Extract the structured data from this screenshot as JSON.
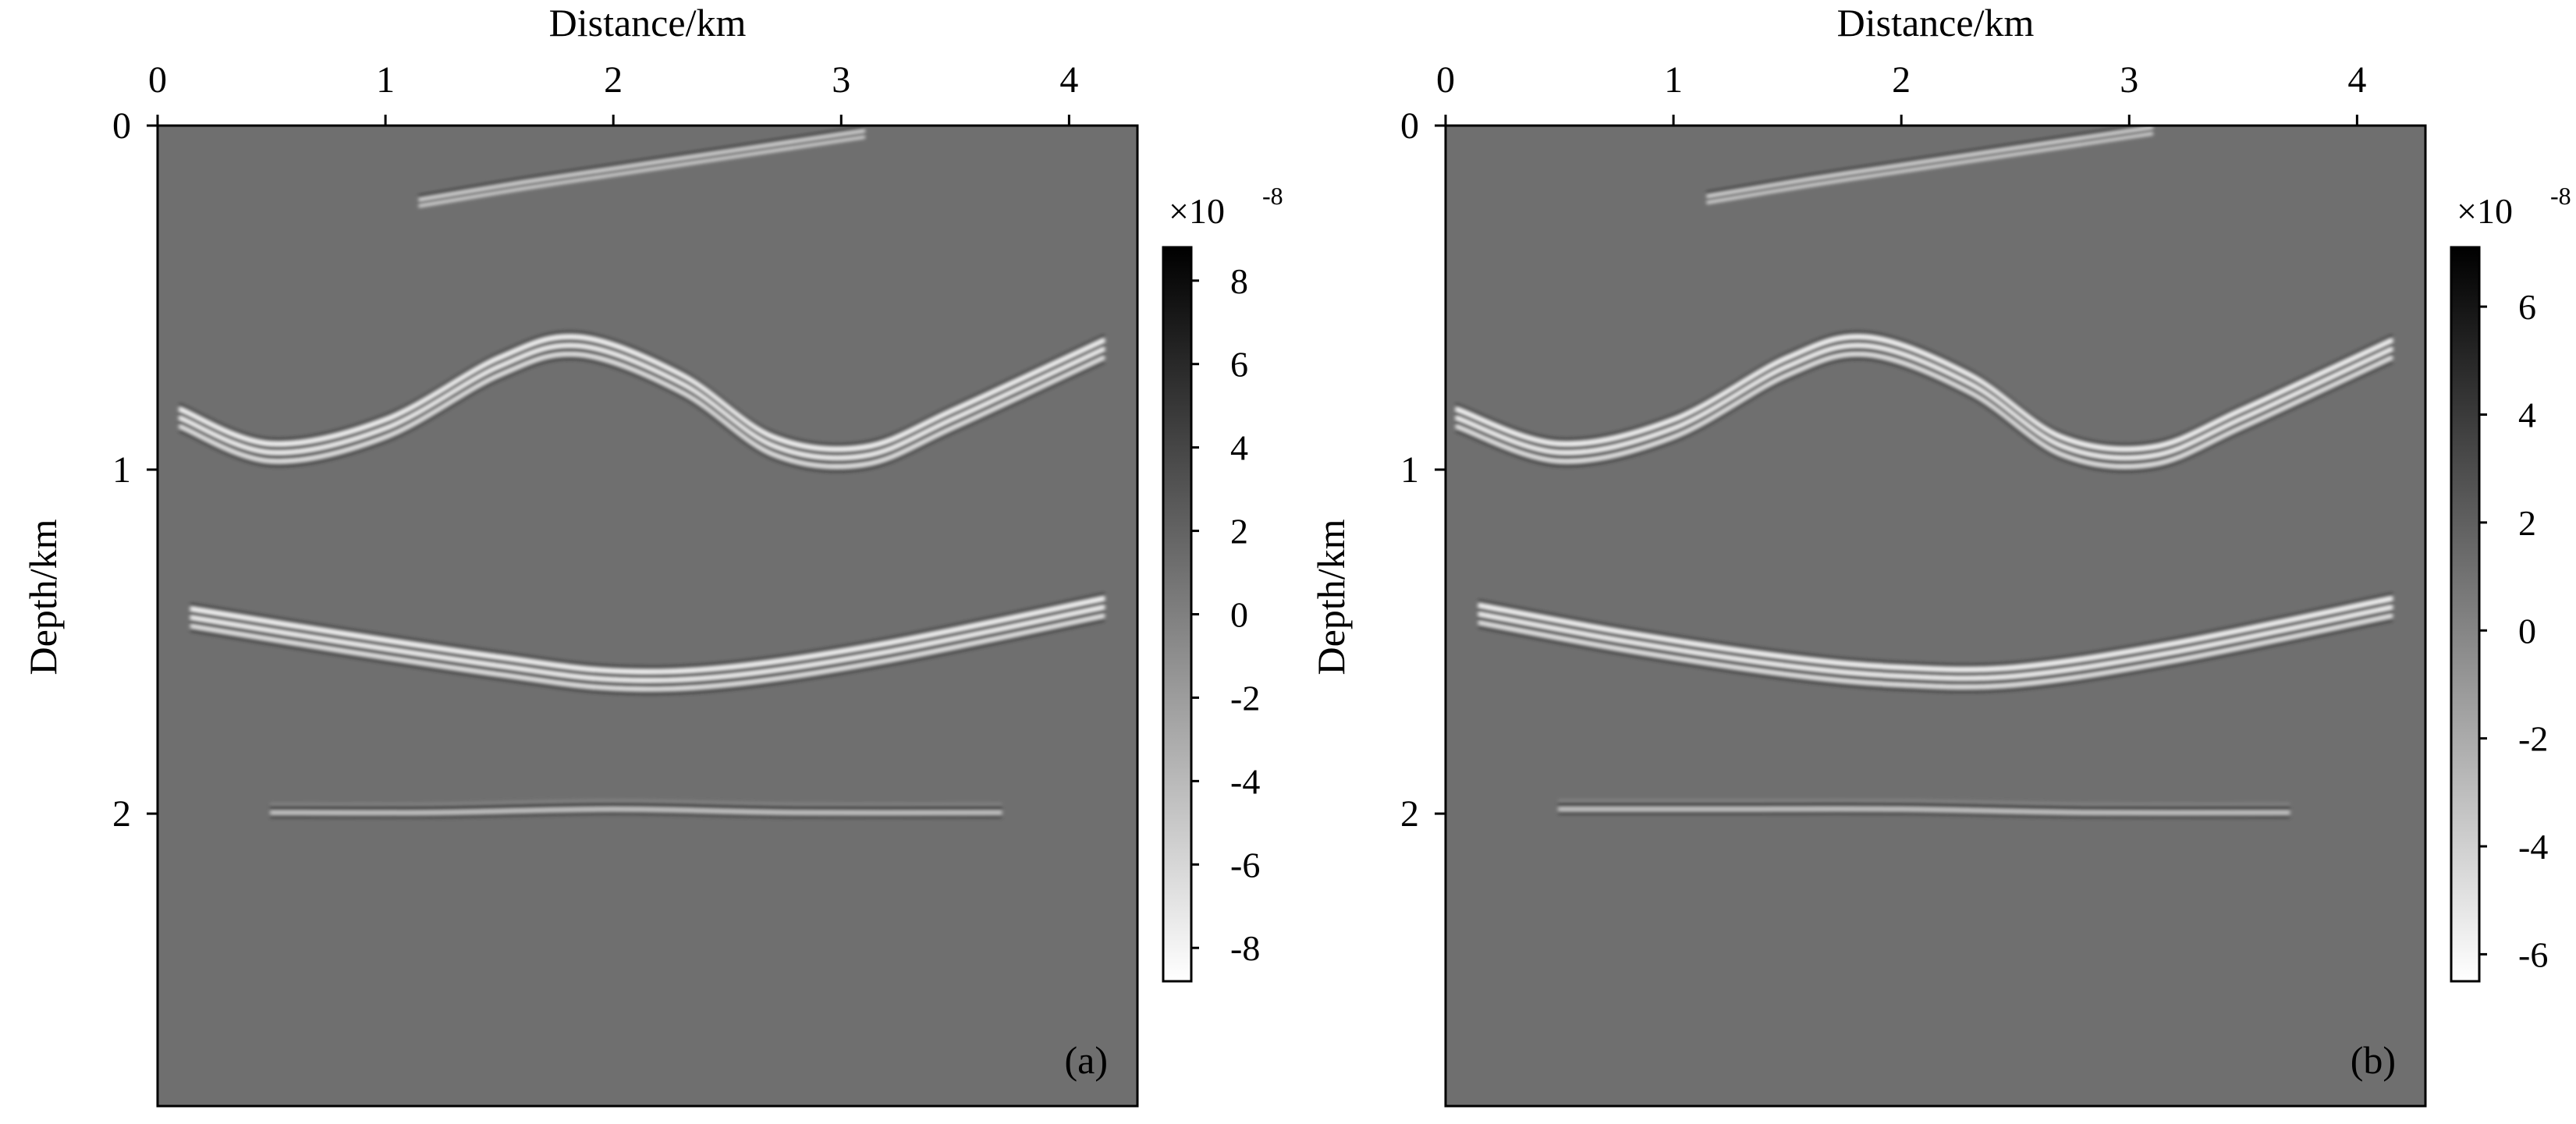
{
  "figure": {
    "panels": [
      {
        "label": "(a)",
        "xlabel": "Distance/km",
        "ylabel": "Depth/km",
        "x_ticks": [
          "0",
          "1",
          "2",
          "3",
          "4"
        ],
        "y_ticks": [
          "0",
          "1",
          "2"
        ],
        "colorbar": {
          "scale_label": "×10",
          "scale_exp": "-8",
          "ticks": [
            "8",
            "6",
            "4",
            "2",
            "0",
            "-2",
            "-4",
            "-6",
            "-8"
          ]
        }
      },
      {
        "label": "(b)",
        "xlabel": "Distance/km",
        "ylabel": "Depth/km",
        "x_ticks": [
          "0",
          "1",
          "2",
          "3",
          "4"
        ],
        "y_ticks": [
          "0",
          "1",
          "2"
        ],
        "colorbar": {
          "scale_label": "×10",
          "scale_exp": "-8",
          "ticks": [
            "6",
            "4",
            "2",
            "0",
            "-2",
            "-4",
            "-6"
          ]
        }
      }
    ]
  },
  "chart_data": [
    {
      "type": "heatmap",
      "title": "",
      "xlabel": "Distance/km",
      "ylabel": "Depth/km",
      "xlim": [
        0,
        4.3
      ],
      "ylim": [
        2.85,
        0
      ],
      "colormap": "gray (black = positive, white = negative)",
      "colorbar": {
        "ticks": [
          8,
          6,
          4,
          2,
          0,
          -2,
          -4,
          -6,
          -8
        ],
        "range": [
          -8.8,
          8.8
        ],
        "multiplier": "1e-8"
      },
      "reflectors": [
        {
          "name": "",
          "x": [
            1.15,
            1.6,
            2.0,
            2.5,
            3.0,
            3.1
          ],
          "depth": [
            0.22,
            0.17,
            0.13,
            0.08,
            0.03,
            0.02
          ]
        },
        {
          "name": "",
          "x": [
            0.1,
            0.5,
            1.0,
            1.5,
            1.85,
            2.3,
            2.7,
            3.1,
            3.5,
            4.15
          ],
          "depth": [
            0.85,
            0.95,
            0.88,
            0.7,
            0.64,
            0.75,
            0.93,
            0.96,
            0.85,
            0.65
          ]
        },
        {
          "name": "",
          "x": [
            0.15,
            0.8,
            1.5,
            2.0,
            2.5,
            3.2,
            4.15
          ],
          "depth": [
            1.43,
            1.5,
            1.57,
            1.61,
            1.6,
            1.53,
            1.4
          ]
        },
        {
          "name": "",
          "x": [
            0.5,
            1.2,
            2.0,
            2.8,
            3.7
          ],
          "depth": [
            1.99,
            1.99,
            1.98,
            1.99,
            1.99
          ]
        }
      ]
    },
    {
      "type": "heatmap",
      "title": "",
      "xlabel": "Distance/km",
      "ylabel": "Depth/km",
      "xlim": [
        0,
        4.3
      ],
      "ylim": [
        2.85,
        0
      ],
      "colormap": "gray (black = positive, white = negative)",
      "colorbar": {
        "ticks": [
          6,
          4,
          2,
          0,
          -2,
          -4,
          -6
        ],
        "range": [
          -6.5,
          7.1
        ],
        "multiplier": "1e-8"
      },
      "reflectors": [
        {
          "name": "",
          "x": [
            1.15,
            1.6,
            2.0,
            2.5,
            3.0,
            3.1
          ],
          "depth": [
            0.21,
            0.16,
            0.12,
            0.07,
            0.02,
            0.01
          ]
        },
        {
          "name": "",
          "x": [
            0.05,
            0.5,
            1.0,
            1.5,
            1.85,
            2.3,
            2.7,
            3.1,
            3.5,
            4.15
          ],
          "depth": [
            0.85,
            0.95,
            0.88,
            0.7,
            0.64,
            0.75,
            0.93,
            0.96,
            0.85,
            0.65
          ]
        },
        {
          "name": "",
          "x": [
            0.15,
            0.8,
            1.5,
            2.0,
            2.5,
            3.2,
            4.15
          ],
          "depth": [
            1.42,
            1.5,
            1.57,
            1.6,
            1.6,
            1.53,
            1.4
          ]
        },
        {
          "name": "",
          "x": [
            0.5,
            1.2,
            2.0,
            2.8,
            3.7
          ],
          "depth": [
            1.98,
            1.98,
            1.98,
            1.99,
            1.99
          ]
        }
      ]
    }
  ]
}
